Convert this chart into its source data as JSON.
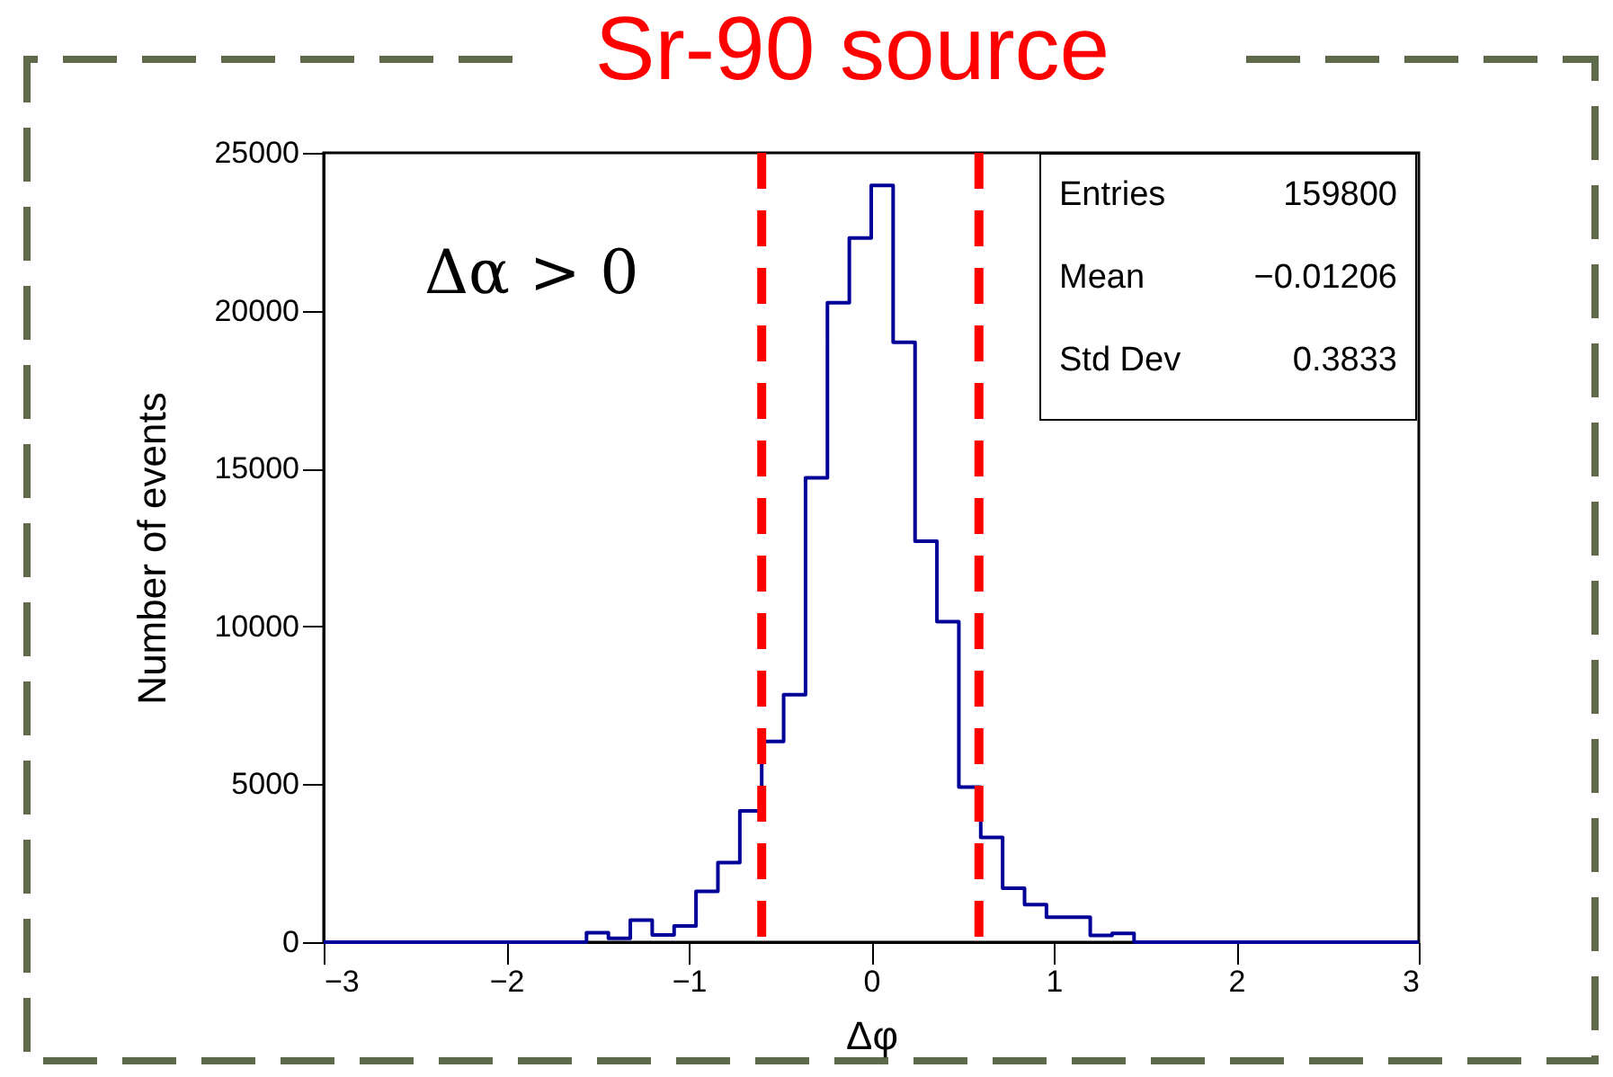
{
  "chart_data": {
    "type": "histogram",
    "title": "Sr-90 source",
    "xlabel": "Δφ",
    "ylabel": "Number of events",
    "bins": [
      -3,
      -2.88,
      -2.76,
      -2.64,
      -2.52,
      -2.4,
      -2.28,
      -2.16,
      -2.04,
      -1.92,
      -1.8,
      -1.68,
      -1.56,
      -1.44,
      -1.32,
      -1.2,
      -1.08,
      -0.96,
      -0.84,
      -0.72,
      -0.6,
      -0.48,
      -0.36,
      -0.24,
      -0.12,
      0,
      0.12,
      0.24,
      0.36,
      0.48,
      0.6,
      0.72,
      0.84,
      0.96,
      1.08,
      1.2,
      1.32,
      1.44,
      1.56,
      1.68,
      1.8,
      1.92,
      2.04,
      2.16,
      2.28,
      2.4,
      2.52,
      2.64,
      2.76,
      2.88,
      3
    ],
    "values": [
      0,
      0,
      0,
      0,
      0,
      0,
      0,
      0,
      0,
      0,
      0,
      0,
      300,
      120,
      700,
      230,
      510,
      1610,
      2520,
      4160,
      6360,
      7840,
      14710,
      20250,
      22300,
      23970,
      19000,
      12700,
      10150,
      4910,
      3320,
      1710,
      1190,
      790,
      790,
      210,
      280,
      0,
      0,
      0,
      0,
      0,
      0,
      0,
      0,
      0,
      0,
      0,
      0,
      0
    ],
    "color": "#000099",
    "xlim": [
      -3,
      3
    ],
    "xticks": [
      -3,
      -2,
      -1,
      0,
      1,
      2,
      3
    ],
    "ylim": [
      0,
      25000
    ],
    "yticks": [
      0,
      5000,
      10000,
      15000,
      20000,
      25000
    ],
    "ref_lines": [
      {
        "axis": "x",
        "value": -0.6,
        "color": "#ff0000",
        "line_style": "dashed"
      },
      {
        "axis": "x",
        "value": 0.59,
        "color": "#ff0000",
        "line_style": "dashed"
      }
    ],
    "annotations": [
      "Δα > 0",
      "Entries 159800",
      "Mean −0.01206",
      "Std Dev 0.3833"
    ]
  }
}
